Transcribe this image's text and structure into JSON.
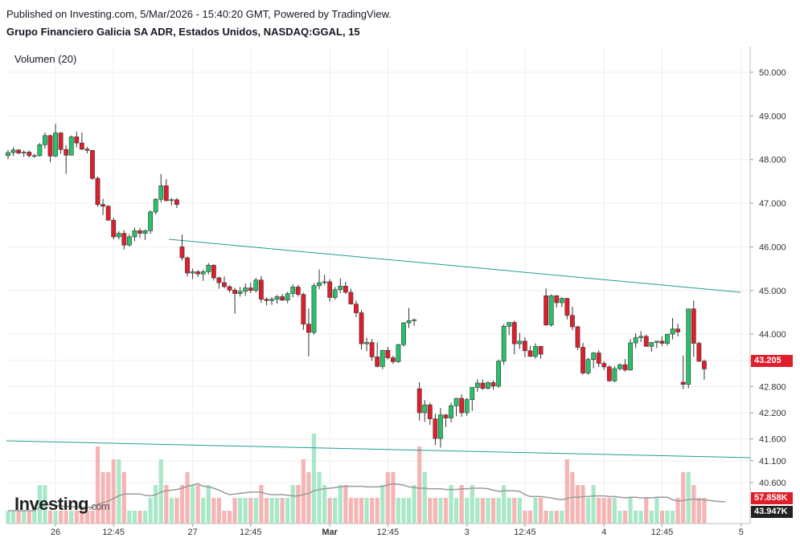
{
  "header": {
    "published": "Published on Investing.com, 5/Mar/2026 - 15:40:20 GMT, Powered by TradingView.",
    "instrument": "Grupo Financiero Galicia SA ADR, Estados Unidos, NASDAQ:GGAL, 15"
  },
  "volume_label": "Volumen (20)",
  "logo": {
    "text": "Investing",
    "suffix": ".com"
  },
  "colors": {
    "up": "#26c26a",
    "down": "#e01e2b",
    "up_vol": "#a8e8c8",
    "down_vol": "#f5b5b5",
    "trendline": "#1f9e8e",
    "vol_ma": "#9a9a9a",
    "price_badge": "#e01e2b",
    "grid": "#eeeeee"
  },
  "badges": {
    "price": "43.205",
    "volume_a": "57.858K",
    "volume_b": "43.947K"
  },
  "chart_data": {
    "type": "candlestick",
    "title": "Grupo Financiero Galicia SA ADR, Estados Unidos, NASDAQ:GGAL, 15",
    "y_ticks": [
      "50.000",
      "49.000",
      "48.000",
      "47.000",
      "46.000",
      "45.000",
      "44.000",
      "43.400",
      "42.800",
      "42.200",
      "41.600",
      "41.100",
      "40.600"
    ],
    "y_tick_values": [
      50.0,
      49.0,
      48.0,
      47.0,
      46.0,
      45.0,
      44.0,
      43.4,
      42.8,
      42.2,
      41.6,
      41.1,
      40.6
    ],
    "x_ticks": [
      "26",
      "12:45",
      "27",
      "12:45",
      "Mar",
      "12:45",
      "3",
      "12:45",
      "4",
      "12:45",
      "5"
    ],
    "x_tick_index": [
      9,
      20,
      35,
      46,
      61,
      72,
      87,
      98,
      113,
      124,
      139
    ],
    "candles": [
      [
        48.09,
        48.22,
        48.01,
        48.16
      ],
      [
        48.16,
        48.28,
        48.08,
        48.22
      ],
      [
        48.22,
        48.24,
        48.12,
        48.15
      ],
      [
        48.15,
        48.21,
        48.06,
        48.17
      ],
      [
        48.17,
        48.21,
        48.05,
        48.09
      ],
      [
        48.09,
        48.13,
        48.04,
        48.09
      ],
      [
        48.09,
        48.38,
        48.07,
        48.34
      ],
      [
        48.34,
        48.62,
        48.25,
        48.55
      ],
      [
        48.55,
        48.57,
        47.94,
        48.08
      ],
      [
        48.08,
        48.82,
        48.06,
        48.61
      ],
      [
        48.61,
        48.63,
        48.13,
        48.23
      ],
      [
        48.23,
        48.33,
        47.67,
        48.1
      ],
      [
        48.1,
        48.55,
        48.1,
        48.52
      ],
      [
        48.52,
        48.64,
        48.28,
        48.38
      ],
      [
        48.38,
        48.62,
        48.21,
        48.24
      ],
      [
        48.24,
        48.29,
        48.14,
        48.21
      ],
      [
        48.21,
        48.22,
        47.53,
        47.57
      ],
      [
        47.57,
        47.61,
        46.92,
        46.97
      ],
      [
        46.97,
        47.1,
        46.73,
        46.93
      ],
      [
        46.93,
        46.96,
        46.62,
        46.61
      ],
      [
        46.61,
        46.67,
        46.17,
        46.23
      ],
      [
        46.23,
        46.36,
        46.17,
        46.31
      ],
      [
        46.31,
        46.38,
        45.94,
        46.04
      ],
      [
        46.04,
        46.29,
        46.01,
        46.23
      ],
      [
        46.23,
        46.44,
        46.13,
        46.37
      ],
      [
        46.37,
        46.43,
        46.21,
        46.31
      ],
      [
        46.31,
        46.4,
        46.16,
        46.37
      ],
      [
        46.37,
        46.84,
        46.3,
        46.8
      ],
      [
        46.8,
        47.12,
        46.74,
        47.09
      ],
      [
        47.09,
        47.67,
        47.02,
        47.4
      ],
      [
        47.4,
        47.55,
        47.04,
        47.06
      ],
      [
        47.06,
        47.12,
        46.95,
        47.08
      ],
      [
        47.08,
        47.12,
        46.89,
        46.97
      ],
      [
        46.0,
        46.28,
        45.69,
        45.75
      ],
      [
        45.75,
        45.78,
        45.32,
        45.4
      ],
      [
        45.4,
        45.5,
        45.26,
        45.43
      ],
      [
        45.43,
        45.47,
        45.31,
        45.38
      ],
      [
        45.38,
        45.48,
        45.22,
        45.43
      ],
      [
        45.43,
        45.63,
        45.37,
        45.58
      ],
      [
        45.58,
        45.6,
        45.23,
        45.29
      ],
      [
        45.29,
        45.32,
        45.04,
        45.18
      ],
      [
        45.18,
        45.32,
        45.05,
        45.09
      ],
      [
        45.09,
        45.12,
        44.96,
        45.01
      ],
      [
        45.01,
        45.06,
        44.47,
        44.93
      ],
      [
        44.93,
        45.08,
        44.86,
        44.98
      ],
      [
        44.98,
        45.16,
        44.88,
        45.06
      ],
      [
        45.06,
        45.18,
        44.94,
        45.0
      ],
      [
        45.0,
        45.29,
        44.96,
        45.24
      ],
      [
        45.24,
        45.33,
        44.72,
        44.8
      ],
      [
        44.8,
        44.84,
        44.66,
        44.77
      ],
      [
        44.77,
        44.85,
        44.67,
        44.8
      ],
      [
        44.8,
        44.9,
        44.7,
        44.86
      ],
      [
        44.86,
        44.92,
        44.76,
        44.78
      ],
      [
        44.78,
        44.97,
        44.71,
        44.93
      ],
      [
        44.93,
        45.14,
        44.84,
        45.08
      ],
      [
        45.08,
        45.13,
        44.86,
        44.91
      ],
      [
        44.91,
        44.95,
        44.1,
        44.23
      ],
      [
        44.23,
        44.59,
        43.49,
        44.04
      ],
      [
        44.04,
        45.17,
        43.99,
        45.11
      ],
      [
        45.11,
        45.48,
        45.03,
        45.18
      ],
      [
        45.18,
        45.36,
        45.12,
        45.2
      ],
      [
        45.2,
        45.26,
        44.75,
        44.84
      ],
      [
        44.84,
        45.08,
        44.79,
        45.02
      ],
      [
        45.02,
        45.28,
        44.94,
        45.1
      ],
      [
        45.1,
        45.2,
        44.92,
        44.96
      ],
      [
        44.96,
        45.04,
        44.68,
        44.69
      ],
      [
        44.69,
        44.77,
        44.39,
        44.49
      ],
      [
        44.49,
        44.56,
        43.65,
        43.78
      ],
      [
        43.78,
        43.92,
        43.61,
        43.81
      ],
      [
        43.81,
        43.89,
        43.39,
        43.48
      ],
      [
        43.48,
        43.81,
        43.24,
        43.26
      ],
      [
        43.26,
        43.64,
        43.2,
        43.63
      ],
      [
        43.63,
        43.71,
        43.42,
        43.46
      ],
      [
        43.46,
        43.51,
        43.32,
        43.37
      ],
      [
        43.37,
        43.78,
        43.34,
        43.76
      ],
      [
        43.76,
        44.28,
        43.71,
        44.26
      ],
      [
        44.26,
        44.6,
        44.14,
        44.31
      ],
      [
        44.31,
        44.36,
        44.19,
        44.33
      ],
      [
        42.75,
        42.9,
        42.02,
        42.2
      ],
      [
        42.2,
        42.49,
        41.99,
        42.38
      ],
      [
        42.38,
        42.43,
        41.92,
        42.06
      ],
      [
        42.06,
        42.18,
        41.46,
        41.61
      ],
      [
        41.61,
        42.31,
        41.4,
        42.15
      ],
      [
        42.15,
        42.17,
        41.87,
        42.08
      ],
      [
        42.08,
        42.43,
        41.98,
        42.36
      ],
      [
        42.36,
        42.54,
        42.12,
        42.53
      ],
      [
        42.53,
        42.62,
        42.11,
        42.2
      ],
      [
        42.2,
        42.54,
        42.13,
        42.5
      ],
      [
        42.5,
        42.74,
        42.24,
        42.78
      ],
      [
        42.78,
        42.97,
        42.68,
        42.88
      ],
      [
        42.88,
        42.96,
        42.72,
        42.76
      ],
      [
        42.76,
        42.91,
        42.73,
        42.89
      ],
      [
        42.89,
        42.94,
        42.73,
        42.81
      ],
      [
        42.81,
        43.42,
        42.77,
        43.38
      ],
      [
        43.38,
        44.23,
        43.3,
        44.18
      ],
      [
        44.18,
        44.27,
        43.98,
        44.27
      ],
      [
        44.27,
        44.31,
        43.54,
        43.78
      ],
      [
        43.78,
        44.03,
        43.66,
        43.84
      ],
      [
        43.84,
        43.93,
        43.47,
        43.62
      ],
      [
        43.62,
        43.73,
        43.48,
        43.49
      ],
      [
        43.49,
        43.79,
        43.44,
        43.72
      ],
      [
        43.72,
        43.73,
        43.44,
        43.54
      ],
      [
        44.88,
        45.05,
        44.19,
        44.21
      ],
      [
        44.21,
        44.91,
        44.17,
        44.88
      ],
      [
        44.88,
        44.9,
        44.61,
        44.72
      ],
      [
        44.72,
        44.84,
        44.62,
        44.82
      ],
      [
        44.82,
        44.83,
        44.34,
        44.43
      ],
      [
        44.43,
        44.63,
        44.09,
        44.17
      ],
      [
        44.17,
        44.19,
        43.64,
        43.7
      ],
      [
        43.7,
        43.8,
        43.07,
        43.11
      ],
      [
        43.11,
        43.46,
        43.07,
        43.42
      ],
      [
        43.42,
        43.59,
        43.22,
        43.57
      ],
      [
        43.57,
        43.63,
        43.25,
        43.33
      ],
      [
        43.33,
        43.38,
        43.18,
        43.25
      ],
      [
        43.25,
        43.29,
        42.91,
        42.93
      ],
      [
        42.93,
        43.27,
        42.9,
        43.21
      ],
      [
        43.21,
        43.33,
        43.17,
        43.3
      ],
      [
        43.3,
        43.43,
        43.14,
        43.18
      ],
      [
        43.18,
        43.89,
        43.16,
        43.8
      ],
      [
        43.8,
        44.02,
        43.68,
        43.92
      ],
      [
        43.92,
        44.07,
        43.82,
        43.95
      ],
      [
        43.95,
        43.99,
        43.71,
        43.72
      ],
      [
        43.72,
        43.82,
        43.6,
        43.81
      ],
      [
        43.81,
        43.85,
        43.68,
        43.84
      ],
      [
        43.84,
        43.95,
        43.73,
        43.79
      ],
      [
        43.79,
        44.0,
        43.74,
        44.0
      ],
      [
        44.0,
        44.37,
        43.88,
        44.12
      ],
      [
        44.12,
        44.24,
        43.95,
        44.05
      ],
      [
        42.9,
        43.51,
        42.74,
        42.85
      ],
      [
        42.85,
        44.56,
        42.76,
        44.58
      ],
      [
        44.58,
        44.77,
        43.48,
        43.79
      ],
      [
        43.79,
        43.83,
        43.36,
        43.38
      ],
      [
        43.38,
        43.42,
        42.96,
        43.205
      ]
    ],
    "volume": [
      1,
      1,
      1,
      1,
      1,
      1,
      3,
      3,
      1,
      1,
      1,
      1,
      1,
      1,
      1,
      1,
      1,
      6,
      4,
      4,
      5,
      5,
      4,
      1,
      1,
      1,
      1,
      2,
      3,
      5,
      3,
      2,
      2,
      3,
      4,
      3,
      3,
      2,
      3,
      2,
      2,
      1,
      1,
      2,
      2,
      2,
      2,
      2,
      3,
      2,
      2,
      2,
      2,
      2,
      3,
      3,
      5,
      4,
      7,
      4,
      3,
      2,
      2,
      3,
      3,
      2,
      2,
      2,
      2,
      2,
      2,
      3,
      4,
      4,
      2,
      2,
      2,
      3,
      6,
      4,
      2,
      2,
      2,
      2,
      3,
      2,
      3,
      2,
      3,
      2,
      2,
      2,
      2,
      2,
      3,
      2,
      2,
      2,
      1,
      1,
      2,
      2,
      1,
      1,
      1,
      1,
      5,
      4,
      3,
      3,
      2,
      3,
      2,
      2,
      2,
      2,
      1,
      1,
      2,
      1,
      1,
      2,
      1,
      2,
      1,
      1,
      1,
      2,
      4,
      4,
      3,
      2,
      2,
      1,
      1,
      1,
      1
    ],
    "volume_axis": {
      "ticks": [
        "57.858K",
        "43.947K"
      ]
    }
  }
}
